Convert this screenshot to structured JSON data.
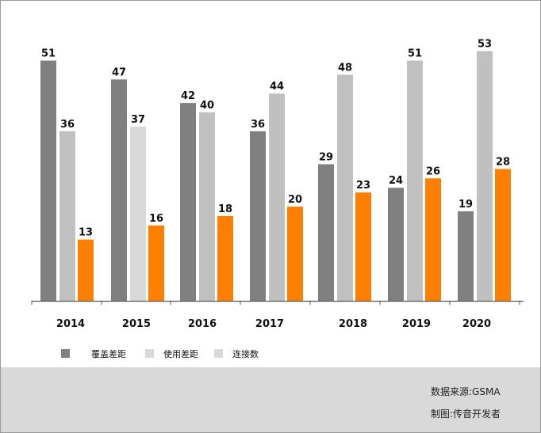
{
  "chart_data": {
    "type": "bar",
    "categories": [
      "2014",
      "2015",
      "2016",
      "2017",
      "2018",
      "2019",
      "2020"
    ],
    "series": [
      {
        "name": "覆盖差距",
        "values": [
          51,
          47,
          42,
          36,
          29,
          24,
          19
        ],
        "color": "#808080"
      },
      {
        "name": "使用差距",
        "values": [
          36,
          37,
          40,
          44,
          48,
          51,
          53
        ],
        "color": "#c0c0c0"
      },
      {
        "name": "连接数",
        "values": [
          13,
          16,
          18,
          20,
          23,
          26,
          28
        ],
        "color": "#ff8000"
      }
    ],
    "secondary_color_2015": "#d9d9d9",
    "ylim": [
      0,
      60
    ],
    "grid": false,
    "legend_position": "bottom-left",
    "legend_swatch_colors": [
      "#808080",
      "#d9d9d9",
      "#d9d9d9"
    ]
  },
  "footer": {
    "source": "数据来源:GSMA",
    "credit": "制图:传音开发者"
  }
}
